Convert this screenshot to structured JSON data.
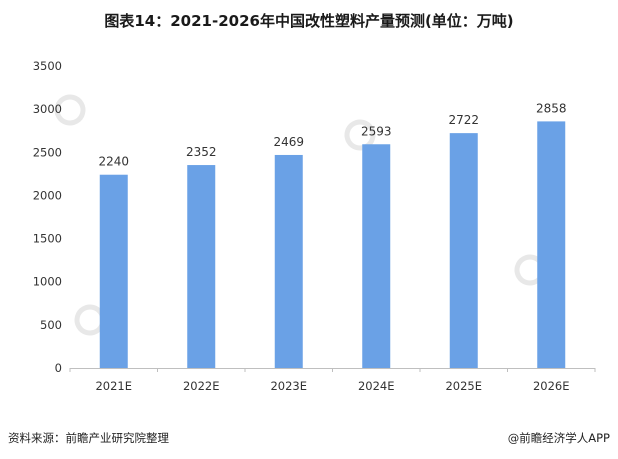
{
  "chart_data": {
    "type": "bar",
    "title": "图表14：2021-2026年中国改性塑料产量预测(单位：万吨)",
    "categories": [
      "2021E",
      "2022E",
      "2023E",
      "2024E",
      "2025E",
      "2026E"
    ],
    "values": [
      2240,
      2352,
      2469,
      2593,
      2722,
      2858
    ],
    "yticks": [
      0,
      500,
      1000,
      1500,
      2000,
      2500,
      3000,
      3500
    ],
    "ylim": [
      0,
      3500
    ],
    "xlabel": "",
    "ylabel": "",
    "grid": false,
    "legend": "none",
    "bar_color": "#6aa1e6"
  },
  "footer": {
    "source": "资料来源：前瞻产业研究院整理",
    "credit": "@前瞻经济学人APP"
  },
  "colors": {
    "axis": "#bfbfbf",
    "text": "#333333",
    "watermark": "#e6e6e6"
  }
}
